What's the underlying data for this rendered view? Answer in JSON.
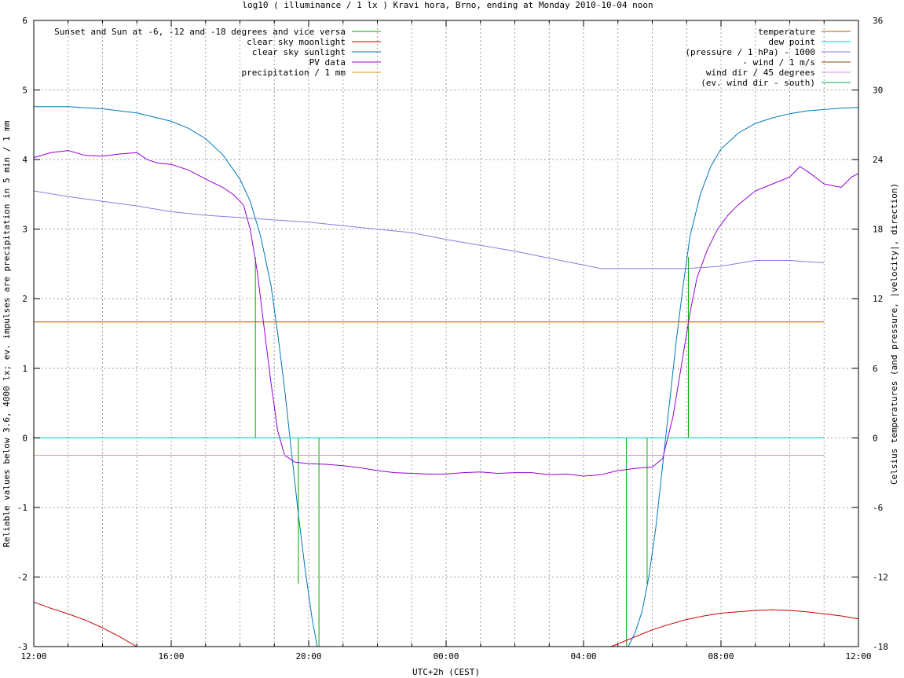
{
  "chart_data": {
    "type": "line",
    "title": "log10 ( illuminance / 1 lx ) Kravi hora, Brno, ending at Monday 2010-10-04 noon",
    "xlabel": "UTC+2h (CEST)",
    "ylabel": "Reliable values below 3.6, 4000 lx; ev. impulses are precipitation in 5 min / 1 mm",
    "y2label": "Celsius temperatures (and pressure, |velocity|, direction)",
    "xlim": [
      12,
      36
    ],
    "ylim": [
      -3,
      6
    ],
    "y2lim": [
      -18,
      36
    ],
    "grid": true,
    "legend_left": "top-left",
    "legend_right": "top-right",
    "x_ticks": [
      {
        "value": 12,
        "label": "12:00"
      },
      {
        "value": 16,
        "label": "16:00"
      },
      {
        "value": 20,
        "label": "20:00"
      },
      {
        "value": 24,
        "label": "00:00"
      },
      {
        "value": 28,
        "label": "04:00"
      },
      {
        "value": 32,
        "label": "08:00"
      },
      {
        "value": 36,
        "label": "12:00"
      }
    ],
    "y_ticks": [
      {
        "value": -3,
        "label": "-3"
      },
      {
        "value": -2,
        "label": "-2"
      },
      {
        "value": -1,
        "label": "-1"
      },
      {
        "value": 0,
        "label": "0"
      },
      {
        "value": 1,
        "label": "1"
      },
      {
        "value": 2,
        "label": "2"
      },
      {
        "value": 3,
        "label": "3"
      },
      {
        "value": 4,
        "label": "4"
      },
      {
        "value": 5,
        "label": "5"
      },
      {
        "value": 6,
        "label": "6"
      }
    ],
    "y2_ticks": [
      {
        "value": -18,
        "label": "-18"
      },
      {
        "value": -12,
        "label": "-12"
      },
      {
        "value": -6,
        "label": "-6"
      },
      {
        "value": 0,
        "label": "0"
      },
      {
        "value": 6,
        "label": "6"
      },
      {
        "value": 12,
        "label": "12"
      },
      {
        "value": 18,
        "label": "18"
      },
      {
        "value": 24,
        "label": "24"
      },
      {
        "value": 30,
        "label": "30"
      },
      {
        "value": 36,
        "label": "36"
      }
    ],
    "series": [
      {
        "name": "Sunset and Sun at -6, -12 and -18 degrees and vice versa",
        "color": "#00aa00",
        "axis": "y1",
        "kind": "impulse",
        "impulses": [
          {
            "x": 18.45,
            "y": 2.6
          },
          {
            "x": 19.1,
            "y": 0.0
          },
          {
            "x": 19.7,
            "y": -2.1
          },
          {
            "x": 20.3,
            "y": -3.0
          },
          {
            "x": 29.25,
            "y": -3.0
          },
          {
            "x": 29.85,
            "y": -2.1
          },
          {
            "x": 30.45,
            "y": 0.0
          },
          {
            "x": 31.05,
            "y": 2.6
          }
        ]
      },
      {
        "name": "clear sky moonlight",
        "color": "#cc0000",
        "axis": "y1",
        "kind": "line",
        "points": [
          [
            12,
            -2.36
          ],
          [
            12.5,
            -2.45
          ],
          [
            13,
            -2.53
          ],
          [
            13.5,
            -2.62
          ],
          [
            14,
            -2.73
          ],
          [
            14.5,
            -2.86
          ],
          [
            15,
            -3.0
          ],
          [
            15.25,
            -3.1
          ]
        ],
        "points2": [
          [
            28.8,
            -3.05
          ],
          [
            29,
            -2.96
          ],
          [
            29.5,
            -2.86
          ],
          [
            30,
            -2.76
          ],
          [
            30.5,
            -2.68
          ],
          [
            31,
            -2.61
          ],
          [
            31.5,
            -2.56
          ],
          [
            32,
            -2.52
          ],
          [
            32.5,
            -2.5
          ],
          [
            33,
            -2.48
          ],
          [
            33.5,
            -2.47
          ],
          [
            34,
            -2.48
          ],
          [
            34.5,
            -2.5
          ],
          [
            35,
            -2.53
          ],
          [
            35.5,
            -2.56
          ],
          [
            36,
            -2.6
          ]
        ]
      },
      {
        "name": "clear sky sunlight",
        "color": "#0077bb",
        "axis": "y1",
        "kind": "line",
        "points": [
          [
            12,
            4.76
          ],
          [
            13,
            4.76
          ],
          [
            14,
            4.73
          ],
          [
            15,
            4.67
          ],
          [
            16,
            4.55
          ],
          [
            16.5,
            4.45
          ],
          [
            17,
            4.3
          ],
          [
            17.5,
            4.07
          ],
          [
            18,
            3.72
          ],
          [
            18.3,
            3.4
          ],
          [
            18.6,
            2.9
          ],
          [
            18.9,
            2.2
          ],
          [
            19.1,
            1.5
          ],
          [
            19.3,
            0.7
          ],
          [
            19.5,
            -0.2
          ],
          [
            19.7,
            -1.1
          ],
          [
            19.9,
            -1.9
          ],
          [
            20.1,
            -2.6
          ],
          [
            20.25,
            -3.0
          ]
        ],
        "points2": [
          [
            29.3,
            -3.0
          ],
          [
            29.5,
            -2.8
          ],
          [
            29.7,
            -2.5
          ],
          [
            29.9,
            -2.0
          ],
          [
            30.1,
            -1.3
          ],
          [
            30.3,
            -0.4
          ],
          [
            30.5,
            0.5
          ],
          [
            30.7,
            1.4
          ],
          [
            30.9,
            2.2
          ],
          [
            31.1,
            2.9
          ],
          [
            31.4,
            3.5
          ],
          [
            31.7,
            3.9
          ],
          [
            32,
            4.15
          ],
          [
            32.5,
            4.38
          ],
          [
            33,
            4.52
          ],
          [
            33.5,
            4.6
          ],
          [
            34,
            4.66
          ],
          [
            34.5,
            4.7
          ],
          [
            35,
            4.72
          ],
          [
            35.5,
            4.74
          ],
          [
            36,
            4.75
          ]
        ]
      },
      {
        "name": "PV data",
        "color": "#9400d3",
        "axis": "y1",
        "kind": "line",
        "points": [
          [
            12,
            4.03
          ],
          [
            12.5,
            4.1
          ],
          [
            13,
            4.13
          ],
          [
            13.5,
            4.06
          ],
          [
            14,
            4.05
          ],
          [
            14.5,
            4.08
          ],
          [
            15,
            4.1
          ],
          [
            15.3,
            4.0
          ],
          [
            15.6,
            3.95
          ],
          [
            16,
            3.93
          ],
          [
            16.5,
            3.85
          ],
          [
            17,
            3.72
          ],
          [
            17.5,
            3.6
          ],
          [
            17.8,
            3.5
          ],
          [
            18.1,
            3.35
          ],
          [
            18.3,
            3.0
          ],
          [
            18.5,
            2.4
          ],
          [
            18.7,
            1.6
          ],
          [
            18.9,
            0.8
          ],
          [
            19.1,
            0.1
          ],
          [
            19.3,
            -0.25
          ],
          [
            19.6,
            -0.35
          ],
          [
            20,
            -0.37
          ],
          [
            20.5,
            -0.38
          ],
          [
            21,
            -0.4
          ],
          [
            21.5,
            -0.43
          ],
          [
            22,
            -0.47
          ],
          [
            22.5,
            -0.5
          ],
          [
            23,
            -0.51
          ],
          [
            23.5,
            -0.52
          ],
          [
            24,
            -0.52
          ],
          [
            24.5,
            -0.5
          ],
          [
            25,
            -0.49
          ],
          [
            25.5,
            -0.51
          ],
          [
            26,
            -0.5
          ],
          [
            26.5,
            -0.5
          ],
          [
            27,
            -0.53
          ],
          [
            27.5,
            -0.52
          ],
          [
            28,
            -0.55
          ],
          [
            28.5,
            -0.53
          ],
          [
            29,
            -0.47
          ],
          [
            29.5,
            -0.44
          ],
          [
            30,
            -0.42
          ],
          [
            30.3,
            -0.3
          ],
          [
            30.6,
            0.3
          ],
          [
            30.9,
            1.2
          ],
          [
            31.1,
            1.8
          ],
          [
            31.3,
            2.3
          ],
          [
            31.6,
            2.7
          ],
          [
            31.9,
            3.0
          ],
          [
            32.2,
            3.2
          ],
          [
            32.5,
            3.35
          ],
          [
            33,
            3.55
          ],
          [
            33.5,
            3.65
          ],
          [
            34,
            3.75
          ],
          [
            34.3,
            3.9
          ],
          [
            34.6,
            3.8
          ],
          [
            35,
            3.65
          ],
          [
            35.5,
            3.6
          ],
          [
            35.8,
            3.75
          ],
          [
            36,
            3.8
          ]
        ]
      },
      {
        "name": "precipitation / 1 mm",
        "color": "#e0a000",
        "axis": "y1",
        "kind": "line",
        "points": []
      },
      {
        "name": "temperature",
        "color": "#b35900",
        "axis": "y2",
        "kind": "line",
        "points": [
          [
            12,
            10.0
          ],
          [
            35,
            10.0
          ]
        ]
      },
      {
        "name": "dew point",
        "color": "#00cccc",
        "axis": "y2",
        "kind": "line",
        "points": [
          [
            12,
            0.0
          ],
          [
            35,
            0.0
          ]
        ]
      },
      {
        "name": "(pressure / 1 hPa) - 1000",
        "color": "#8080e0",
        "axis": "y2",
        "kind": "line",
        "points": [
          [
            12,
            21.3
          ],
          [
            13,
            20.8
          ],
          [
            14,
            20.4
          ],
          [
            15,
            20.0
          ],
          [
            16,
            19.5
          ],
          [
            17,
            19.2
          ],
          [
            18,
            19.0
          ],
          [
            19,
            18.8
          ],
          [
            20,
            18.6
          ],
          [
            21,
            18.3
          ],
          [
            22,
            18.0
          ],
          [
            23,
            17.7
          ],
          [
            24,
            17.1
          ],
          [
            25,
            16.6
          ],
          [
            26,
            16.1
          ],
          [
            27,
            15.5
          ],
          [
            28,
            14.9
          ],
          [
            28.5,
            14.6
          ],
          [
            29,
            14.6
          ],
          [
            30,
            14.6
          ],
          [
            31,
            14.6
          ],
          [
            32,
            14.8
          ],
          [
            33,
            15.3
          ],
          [
            34,
            15.3
          ],
          [
            35,
            15.1
          ]
        ]
      },
      {
        "name": "- wind / 1 m/s",
        "color": "#8b4513",
        "axis": "y2",
        "kind": "line",
        "points": []
      },
      {
        "name": "wind dir / 45 degrees",
        "color": "#dd88ee",
        "axis": "y2",
        "kind": "line",
        "points": [
          [
            12,
            -1.5
          ],
          [
            35,
            -1.5
          ]
        ]
      },
      {
        "name": "(ev. wind dir - south)",
        "color": "#00aa55",
        "axis": "y2",
        "kind": "line",
        "points": []
      }
    ]
  }
}
